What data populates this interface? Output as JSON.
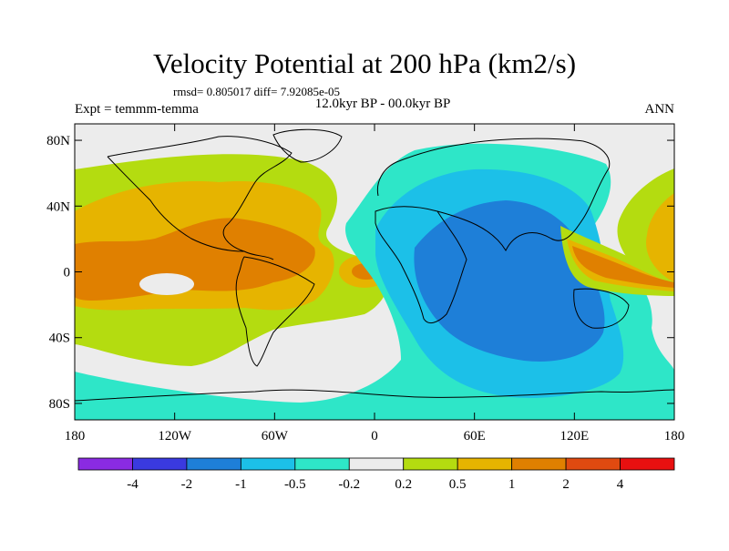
{
  "chart_data": {
    "type": "heatmap",
    "title": "Velocity Potential at 200 hPa (km2/s)",
    "stats_text": "rmsd= 0.805017 diff= 7.92085e-05",
    "subtitle_center": "12.0kyr BP - 00.0kyr BP",
    "subtitle_left": "Expt = temmm-temma",
    "subtitle_right": "ANN",
    "x_axis": {
      "range": [
        -180,
        180
      ],
      "ticks": [
        -180,
        -120,
        -60,
        0,
        60,
        120,
        180
      ],
      "tick_labels": [
        "180",
        "120W",
        "60W",
        "0",
        "60E",
        "120E",
        "180"
      ]
    },
    "y_axis": {
      "range": [
        -90,
        90
      ],
      "ticks": [
        80,
        40,
        0,
        -40,
        -80
      ],
      "tick_labels": [
        "80N",
        "40N",
        "0",
        "40S",
        "80S"
      ]
    },
    "colorbar": {
      "levels": [
        "-4",
        "-2",
        "-1",
        "-0.5",
        "-0.2",
        "0.2",
        "0.5",
        "1",
        "2",
        "4"
      ],
      "colors": [
        "#8a2be2",
        "#3a3ae0",
        "#1e7fd8",
        "#1cc0e8",
        "#2ee6c8",
        "#ececec",
        "#b4dc10",
        "#e6b400",
        "#e08000",
        "#e04a10",
        "#e81010"
      ]
    },
    "regions": [
      {
        "name": "negative-anomaly-east",
        "level_range": [
          "-2",
          "-0.2"
        ],
        "lon_range": [
          -10,
          160
        ]
      },
      {
        "name": "positive-anomaly-west",
        "level_range": [
          "0.2",
          "2"
        ],
        "lon_range": [
          -180,
          0
        ]
      },
      {
        "name": "positive-anomaly-maritime-continent",
        "level_range": [
          "0.2",
          "2"
        ],
        "lon_range": [
          115,
          180
        ]
      }
    ]
  }
}
